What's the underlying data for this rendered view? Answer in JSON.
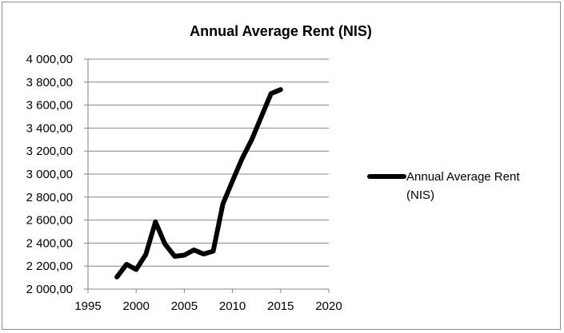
{
  "chart_data": {
    "type": "line",
    "title": "Annual Average Rent (NIS)",
    "xlabel": "",
    "ylabel": "",
    "xlim": [
      1995,
      2020
    ],
    "ylim": [
      2000,
      4000
    ],
    "x_ticks": [
      "1995",
      "2000",
      "2005",
      "2010",
      "2015",
      "2020"
    ],
    "y_ticks": [
      "2 000,00",
      "2 200,00",
      "2 400,00",
      "2 600,00",
      "2 800,00",
      "3 000,00",
      "3 200,00",
      "3 400,00",
      "3 600,00",
      "3 800,00",
      "4 000,00"
    ],
    "grid": "horizontal",
    "legend_position": "right",
    "series": [
      {
        "name": "Annual Average Rent (NIS)",
        "color": "#000000",
        "x": [
          1998,
          1999,
          2000,
          2001,
          2002,
          2003,
          2004,
          2005,
          2006,
          2007,
          2008,
          2009,
          2010,
          2011,
          2012,
          2013,
          2014,
          2015
        ],
        "y": [
          2105,
          2215,
          2170,
          2300,
          2585,
          2390,
          2285,
          2295,
          2340,
          2305,
          2330,
          2740,
          2940,
          3135,
          3300,
          3500,
          3700,
          3735
        ]
      }
    ],
    "legend_label_lines": [
      "Annual Average Rent",
      "(NIS)"
    ]
  }
}
